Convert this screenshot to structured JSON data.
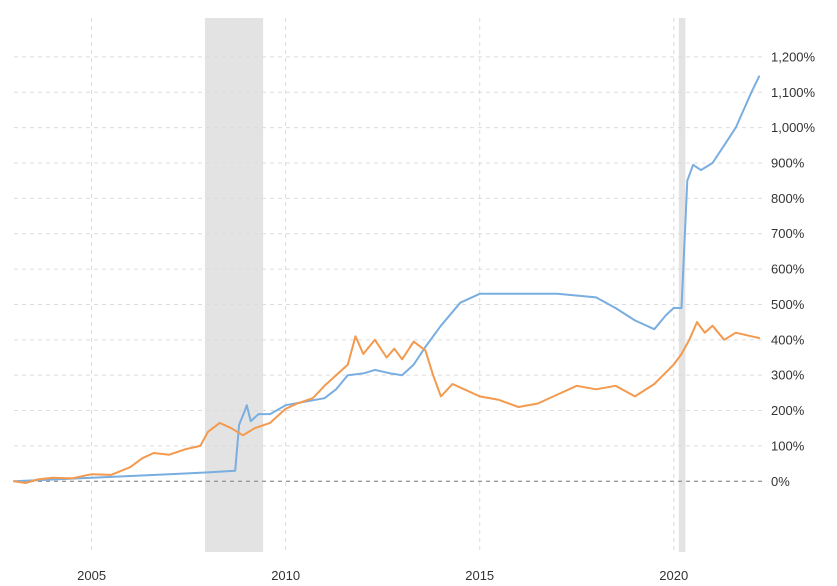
{
  "chart_data": {
    "type": "line",
    "title": "",
    "xlabel": "",
    "ylabel": "",
    "xlim": [
      2003.0,
      2022.3
    ],
    "ylim": [
      -200,
      1310
    ],
    "grid": true,
    "legend": "none",
    "x_ticks": [
      {
        "value": 2005,
        "label": "2005"
      },
      {
        "value": 2010,
        "label": "2010"
      },
      {
        "value": 2015,
        "label": "2015"
      },
      {
        "value": 2020,
        "label": "2020"
      }
    ],
    "y_ticks": [
      {
        "value": 0,
        "label": "0%"
      },
      {
        "value": 100,
        "label": "100%"
      },
      {
        "value": 200,
        "label": "200%"
      },
      {
        "value": 300,
        "label": "300%"
      },
      {
        "value": 400,
        "label": "400%"
      },
      {
        "value": 500,
        "label": "500%"
      },
      {
        "value": 600,
        "label": "600%"
      },
      {
        "value": 700,
        "label": "700%"
      },
      {
        "value": 800,
        "label": "800%"
      },
      {
        "value": 900,
        "label": "900%"
      },
      {
        "value": 1000,
        "label": "1,000%"
      },
      {
        "value": 1100,
        "label": "1,100%"
      },
      {
        "value": 1200,
        "label": "1,200%"
      }
    ],
    "recessions": [
      {
        "start": 2007.92,
        "end": 2009.42
      },
      {
        "start": 2020.13,
        "end": 2020.3
      }
    ],
    "series": [
      {
        "color": "#7aaee0",
        "points": [
          [
            2003.0,
            0
          ],
          [
            2004.0,
            5
          ],
          [
            2005.0,
            10
          ],
          [
            2006.0,
            15
          ],
          [
            2007.0,
            20
          ],
          [
            2008.0,
            25
          ],
          [
            2008.7,
            30
          ],
          [
            2008.8,
            160
          ],
          [
            2008.95,
            200
          ],
          [
            2009.0,
            215
          ],
          [
            2009.1,
            170
          ],
          [
            2009.3,
            190
          ],
          [
            2009.6,
            190
          ],
          [
            2010.0,
            215
          ],
          [
            2010.5,
            225
          ],
          [
            2011.0,
            235
          ],
          [
            2011.3,
            260
          ],
          [
            2011.6,
            300
          ],
          [
            2012.0,
            305
          ],
          [
            2012.3,
            315
          ],
          [
            2012.7,
            305
          ],
          [
            2013.0,
            300
          ],
          [
            2013.3,
            330
          ],
          [
            2013.6,
            380
          ],
          [
            2014.0,
            440
          ],
          [
            2014.5,
            505
          ],
          [
            2015.0,
            530
          ],
          [
            2016.0,
            530
          ],
          [
            2017.0,
            530
          ],
          [
            2018.0,
            520
          ],
          [
            2018.5,
            490
          ],
          [
            2019.0,
            455
          ],
          [
            2019.5,
            430
          ],
          [
            2019.8,
            470
          ],
          [
            2020.0,
            490
          ],
          [
            2020.2,
            490
          ],
          [
            2020.35,
            850
          ],
          [
            2020.5,
            895
          ],
          [
            2020.7,
            880
          ],
          [
            2021.0,
            900
          ],
          [
            2021.3,
            950
          ],
          [
            2021.6,
            1000
          ],
          [
            2022.0,
            1100
          ],
          [
            2022.2,
            1145
          ]
        ]
      },
      {
        "color": "#f39a4f",
        "points": [
          [
            2003.0,
            0
          ],
          [
            2003.3,
            -5
          ],
          [
            2003.6,
            5
          ],
          [
            2004.0,
            10
          ],
          [
            2004.5,
            8
          ],
          [
            2005.0,
            20
          ],
          [
            2005.5,
            18
          ],
          [
            2006.0,
            40
          ],
          [
            2006.3,
            65
          ],
          [
            2006.6,
            80
          ],
          [
            2007.0,
            75
          ],
          [
            2007.4,
            90
          ],
          [
            2007.8,
            100
          ],
          [
            2008.0,
            140
          ],
          [
            2008.3,
            165
          ],
          [
            2008.6,
            150
          ],
          [
            2008.9,
            130
          ],
          [
            2009.2,
            150
          ],
          [
            2009.6,
            165
          ],
          [
            2010.0,
            205
          ],
          [
            2010.3,
            220
          ],
          [
            2010.7,
            235
          ],
          [
            2011.0,
            270
          ],
          [
            2011.3,
            300
          ],
          [
            2011.6,
            330
          ],
          [
            2011.8,
            410
          ],
          [
            2012.0,
            360
          ],
          [
            2012.3,
            400
          ],
          [
            2012.6,
            350
          ],
          [
            2012.8,
            375
          ],
          [
            2013.0,
            345
          ],
          [
            2013.3,
            395
          ],
          [
            2013.6,
            370
          ],
          [
            2013.8,
            300
          ],
          [
            2014.0,
            240
          ],
          [
            2014.3,
            275
          ],
          [
            2014.6,
            260
          ],
          [
            2015.0,
            240
          ],
          [
            2015.5,
            230
          ],
          [
            2016.0,
            210
          ],
          [
            2016.5,
            220
          ],
          [
            2017.0,
            245
          ],
          [
            2017.5,
            270
          ],
          [
            2018.0,
            260
          ],
          [
            2018.5,
            270
          ],
          [
            2019.0,
            240
          ],
          [
            2019.5,
            275
          ],
          [
            2020.0,
            330
          ],
          [
            2020.2,
            360
          ],
          [
            2020.4,
            400
          ],
          [
            2020.6,
            450
          ],
          [
            2020.8,
            420
          ],
          [
            2021.0,
            440
          ],
          [
            2021.3,
            400
          ],
          [
            2021.6,
            420
          ],
          [
            2022.0,
            410
          ],
          [
            2022.2,
            405
          ]
        ]
      }
    ]
  }
}
